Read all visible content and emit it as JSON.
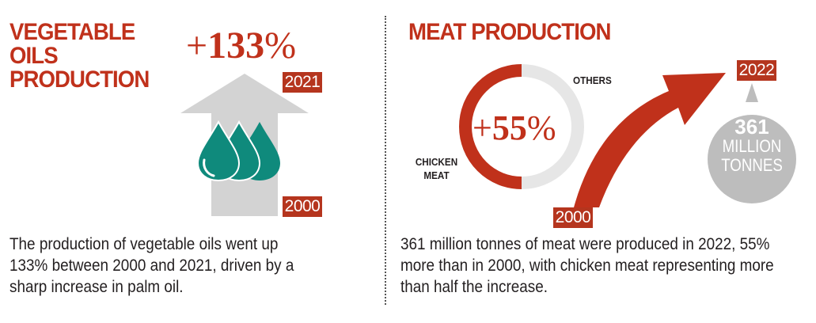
{
  "oils": {
    "title_line1": "VEGETABLE",
    "title_line2": "OILS",
    "title_line3": "PRODUCTION",
    "change_sign": "+",
    "change_value": "133",
    "change_unit": "%",
    "year_end": "2021",
    "year_start": "2000",
    "description": "The production of vegetable oils went up 133% between 2000 and 2021, driven by a sharp increase in palm oil."
  },
  "meat": {
    "title": "MEAT PRODUCTION",
    "change_sign": "+",
    "change_value": "55",
    "change_unit": "%",
    "label_others": "OTHERS",
    "label_chicken_line1": "CHICKEN",
    "label_chicken_line2": "MEAT",
    "year_end": "2022",
    "year_start": "2000",
    "total_line1": "361",
    "total_line2": "MILLION",
    "total_line3": "TONNES",
    "description": "361 million tonnes of meat were produced in 2022, 55% more than in 2000, with chicken meat representing more than half the increase."
  },
  "colors": {
    "accent": "#c0311b",
    "badge": "#b5351e",
    "arrow_grey": "#d3d3d3",
    "drop_teal": "#0f8a7c",
    "circle_grey": "#bdbdbd",
    "ring_light": "#e6e6e6"
  },
  "icons": [
    "up-arrow-icon",
    "oil-drops-icon",
    "growth-arrow-icon",
    "donut-ring-icon",
    "weight-circle-icon"
  ]
}
